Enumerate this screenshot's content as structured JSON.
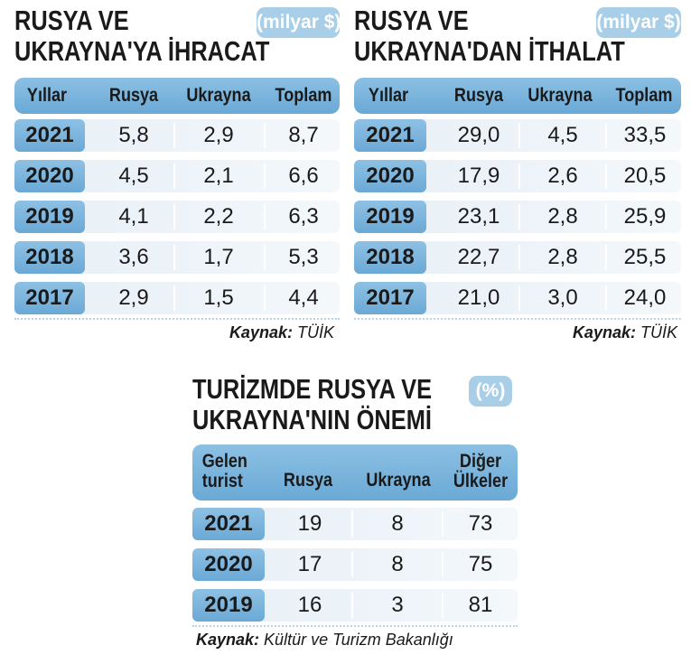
{
  "exports": {
    "title_line1": "RUSYA VE",
    "title_line2": "UKRAYNA'YA İHRACAT",
    "unit": "(milyar $)",
    "headers": [
      "Yıllar",
      "Rusya",
      "Ukrayna",
      "Toplam"
    ],
    "rows": [
      {
        "year": "2021",
        "rusya": "5,8",
        "ukrayna": "2,9",
        "toplam": "8,7"
      },
      {
        "year": "2020",
        "rusya": "4,5",
        "ukrayna": "2,1",
        "toplam": "6,6"
      },
      {
        "year": "2019",
        "rusya": "4,1",
        "ukrayna": "2,2",
        "toplam": "6,3"
      },
      {
        "year": "2018",
        "rusya": "3,6",
        "ukrayna": "1,7",
        "toplam": "5,3"
      },
      {
        "year": "2017",
        "rusya": "2,9",
        "ukrayna": "1,5",
        "toplam": "4,4"
      }
    ],
    "source_label": "Kaynak:",
    "source_value": "TÜİK"
  },
  "imports": {
    "title_line1": "RUSYA VE",
    "title_line2": "UKRAYNA'DAN İTHALAT",
    "unit": "(milyar $)",
    "headers": [
      "Yıllar",
      "Rusya",
      "Ukrayna",
      "Toplam"
    ],
    "rows": [
      {
        "year": "2021",
        "rusya": "29,0",
        "ukrayna": "4,5",
        "toplam": "33,5"
      },
      {
        "year": "2020",
        "rusya": "17,9",
        "ukrayna": "2,6",
        "toplam": "20,5"
      },
      {
        "year": "2019",
        "rusya": "23,1",
        "ukrayna": "2,8",
        "toplam": "25,9"
      },
      {
        "year": "2018",
        "rusya": "22,7",
        "ukrayna": "2,8",
        "toplam": "25,5"
      },
      {
        "year": "2017",
        "rusya": "21,0",
        "ukrayna": "3,0",
        "toplam": "24,0"
      }
    ],
    "source_label": "Kaynak:",
    "source_value": "TÜİK"
  },
  "tourism": {
    "title_line1": "TURİZMDE RUSYA VE",
    "title_line2": "UKRAYNA'NIN ÖNEMİ",
    "unit": "(%)",
    "headers": {
      "col1_line1": "Gelen",
      "col1_line2": "turist",
      "col2": "Rusya",
      "col3": "Ukrayna",
      "col4_line1": "Diğer",
      "col4_line2": "Ülkeler"
    },
    "rows": [
      {
        "year": "2021",
        "rusya": "19",
        "ukrayna": "8",
        "diger": "73"
      },
      {
        "year": "2020",
        "rusya": "17",
        "ukrayna": "8",
        "diger": "75"
      },
      {
        "year": "2019",
        "rusya": "16",
        "ukrayna": "3",
        "diger": "81"
      }
    ],
    "source_label": "Kaynak:",
    "source_value": "Kültür ve Turizm Bakanlığı"
  },
  "colors": {
    "header_blue": "#6aa9d6",
    "unit_badge": "#a9cfe8",
    "row_bg": "#e7eff6"
  }
}
